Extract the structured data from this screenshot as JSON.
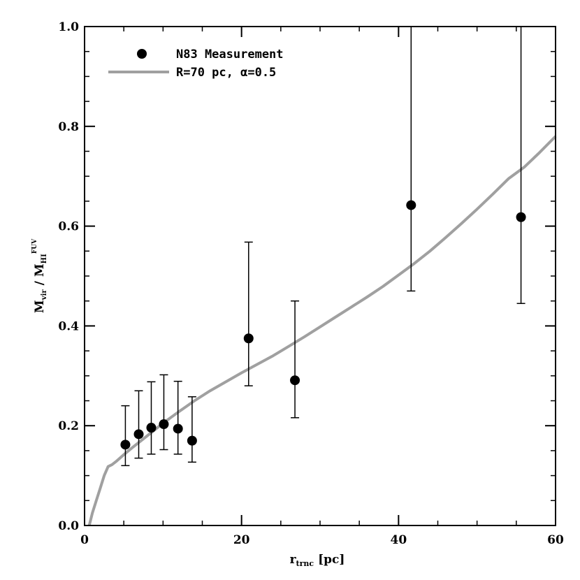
{
  "chart_data": {
    "type": "scatter",
    "xlabel": "r_trnc [pc]",
    "xlabel_main": "r",
    "xlabel_sub": "trnc",
    "xlabel_rest": "[pc]",
    "ylabel_parts": {
      "m1": "M",
      "s1": "vir",
      "slash": "/",
      "m2": "M",
      "s2": "HI",
      "sup": "FUV"
    },
    "xlim": [
      0,
      60
    ],
    "ylim": [
      0,
      1.0
    ],
    "x_ticks": [
      "0",
      "20",
      "40",
      "60"
    ],
    "x_tick_values": [
      0,
      20,
      40,
      60
    ],
    "y_ticks": [
      "0.0",
      "0.2",
      "0.4",
      "0.6",
      "0.8",
      "1.0"
    ],
    "y_tick_values": [
      0.0,
      0.2,
      0.4,
      0.6,
      0.8,
      1.0
    ],
    "x_minor_step": 5,
    "y_minor_step": 0.05,
    "grid": false,
    "legend_position": "top-left",
    "series": [
      {
        "name": "N83 Measurement",
        "kind": "points_with_errors",
        "color": "#000000",
        "x": [
          5.2,
          6.9,
          8.5,
          10.1,
          11.9,
          13.7,
          20.9,
          26.8,
          41.6,
          55.6
        ],
        "y": [
          0.162,
          0.183,
          0.196,
          0.203,
          0.194,
          0.17,
          0.375,
          0.291,
          0.642,
          0.618
        ],
        "ylo": [
          0.12,
          0.135,
          0.143,
          0.152,
          0.143,
          0.127,
          0.28,
          0.216,
          0.47,
          0.445
        ],
        "yhi": [
          0.24,
          0.27,
          0.288,
          0.302,
          0.289,
          0.258,
          0.568,
          0.45,
          1.0,
          1.0
        ]
      },
      {
        "name": "R=70 pc, α=0.5",
        "kind": "line",
        "color": "#a0a0a0",
        "x": [
          0.6,
          1.0,
          1.5,
          2.0,
          2.5,
          3.0,
          3.5,
          4.0,
          5.0,
          6.0,
          8.0,
          10.0,
          12.0,
          14.0,
          16.0,
          18.0,
          20.0,
          22.0,
          24.0,
          26.0,
          28.0,
          30.0,
          32.0,
          34.0,
          36.0,
          38.0,
          40.0,
          42.0,
          44.0,
          46.0,
          48.0,
          50.0,
          52.0,
          54.0,
          56.0,
          58.0,
          60.0
        ],
        "y": [
          0.0,
          0.025,
          0.05,
          0.075,
          0.1,
          0.118,
          0.122,
          0.128,
          0.142,
          0.155,
          0.18,
          0.205,
          0.228,
          0.25,
          0.27,
          0.288,
          0.306,
          0.323,
          0.34,
          0.359,
          0.378,
          0.398,
          0.418,
          0.438,
          0.458,
          0.479,
          0.502,
          0.525,
          0.55,
          0.577,
          0.605,
          0.634,
          0.664,
          0.695,
          0.718,
          0.748,
          0.78
        ]
      }
    ]
  }
}
